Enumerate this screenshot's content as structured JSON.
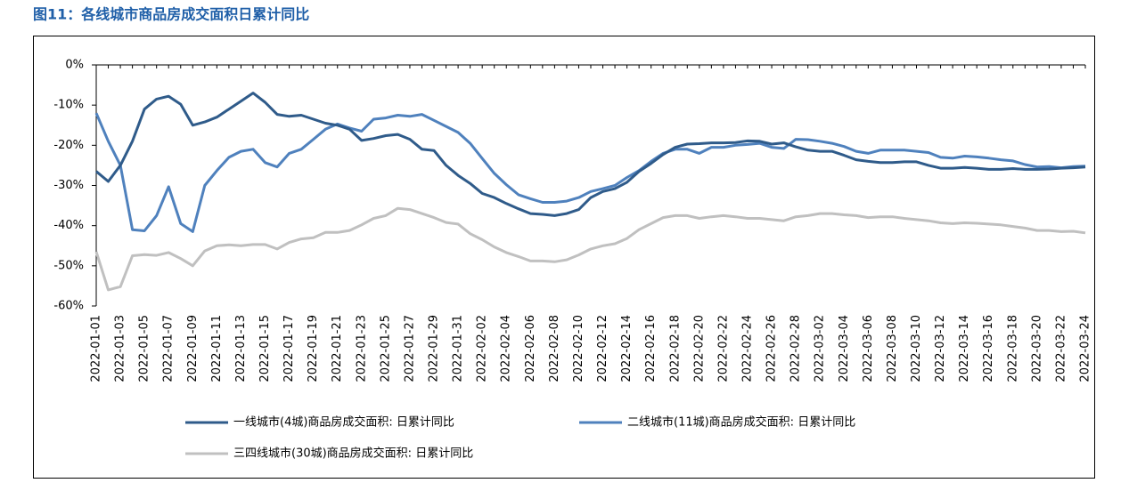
{
  "chart_data": {
    "type": "line",
    "title": "图11：各线城市商品房成交面积日累计同比",
    "categories": [
      "2022-01-01",
      null,
      "2022-01-03",
      null,
      "2022-01-05",
      null,
      "2022-01-07",
      null,
      "2022-01-09",
      null,
      "2022-01-11",
      null,
      "2022-01-13",
      null,
      "2022-01-15",
      null,
      "2022-01-17",
      null,
      "2022-01-19",
      null,
      "2022-01-21",
      null,
      "2022-01-23",
      null,
      "2022-01-25",
      null,
      "2022-01-27",
      null,
      "2022-01-29",
      null,
      "2022-01-31",
      null,
      "2022-02-02",
      null,
      "2022-02-04",
      null,
      "2022-02-06",
      null,
      "2022-02-08",
      null,
      "2022-02-10",
      null,
      "2022-02-12",
      null,
      "2022-02-14",
      null,
      "2022-02-16",
      null,
      "2022-02-18",
      null,
      "2022-02-20",
      null,
      "2022-02-22",
      null,
      "2022-02-24",
      null,
      "2022-02-26",
      null,
      "2022-02-28",
      null,
      "2022-03-02",
      null,
      "2022-03-04",
      null,
      "2022-03-06",
      null,
      "2022-03-08",
      null,
      "2022-03-10",
      null,
      "2022-03-12",
      null,
      "2022-03-14",
      null,
      "2022-03-16",
      null,
      "2022-03-18",
      null,
      "2022-03-20",
      null,
      "2022-03-22",
      null,
      "2022-03-24"
    ],
    "series": [
      {
        "name": "一线城市(4城)商品房成交面积: 日累计同比",
        "color": "#2f5b8a",
        "values": [
          -26.5,
          -29,
          -25,
          -19,
          -11,
          -8.5,
          -7.8,
          -9.8,
          -15,
          -14.2,
          -13,
          -11,
          -9,
          -7,
          -9.3,
          -12.3,
          -12.8,
          -12.5,
          -13.5,
          -14.5,
          -15,
          -16,
          -18.8,
          -18.3,
          -17.6,
          -17.3,
          -18.5,
          -21,
          -21.3,
          -25,
          -27.5,
          -29.5,
          -32,
          -33,
          -34.5,
          -35.8,
          -37,
          -37.2,
          -37.5,
          -37,
          -36,
          -33,
          -31.5,
          -30.8,
          -29.2,
          -26.5,
          -24.5,
          -22.3,
          -20.5,
          -19.7,
          -19.6,
          -19.4,
          -19.4,
          -19.3,
          -18.9,
          -19,
          -19.7,
          -19.4,
          -20.4,
          -21.2,
          -21.5,
          -21.5,
          -22.5,
          -23.6,
          -24,
          -24.3,
          -24.3,
          -24.1,
          -24.1,
          -25,
          -25.7,
          -25.7,
          -25.5,
          -25.7,
          -26,
          -26,
          -25.8,
          -26,
          -26,
          -25.9,
          -25.7,
          -25.6,
          -25.4
        ]
      },
      {
        "name": "二线城市(11城)商品房成交面积: 日累计同比",
        "color": "#4f81bd",
        "values": [
          -12,
          -19,
          -25,
          -41,
          -41.3,
          -37.5,
          -30.3,
          -39.5,
          -41.5,
          -30,
          -26.3,
          -23,
          -21.5,
          -21,
          -24.3,
          -25.4,
          -22,
          -21,
          -18.5,
          -16,
          -14.7,
          -15.7,
          -16.5,
          -13.5,
          -13.2,
          -12.5,
          -12.8,
          -12.3,
          -13.8,
          -15.3,
          -16.8,
          -19.5,
          -23.3,
          -27,
          -29.8,
          -32.3,
          -33.3,
          -34.2,
          -34.2,
          -33.9,
          -33,
          -31.5,
          -30.8,
          -30,
          -28,
          -26.3,
          -24,
          -22,
          -21,
          -21,
          -22,
          -20.5,
          -20.5,
          -20,
          -19.8,
          -19.5,
          -20.5,
          -20.8,
          -18.5,
          -18.6,
          -19,
          -19.5,
          -20.3,
          -21.5,
          -22,
          -21.2,
          -21.2,
          -21.2,
          -21.5,
          -21.8,
          -23,
          -23.2,
          -22.7,
          -22.9,
          -23.2,
          -23.6,
          -23.9,
          -24.8,
          -25.4,
          -25.3,
          -25.6,
          -25.3,
          -25.2
        ]
      },
      {
        "name": "三四线城市(30城)商品房成交面积: 日累计同比",
        "color": "#c0c0c0",
        "values": [
          -46.5,
          -56,
          -55.2,
          -47.5,
          -47.2,
          -47.4,
          -46.7,
          -48.2,
          -50,
          -46.3,
          -45,
          -44.8,
          -45,
          -44.7,
          -44.7,
          -45.8,
          -44.2,
          -43.3,
          -43,
          -41.7,
          -41.7,
          -41.2,
          -39.8,
          -38.2,
          -37.5,
          -35.7,
          -36,
          -37,
          -38,
          -39.2,
          -39.6,
          -42,
          -43.5,
          -45.3,
          -46.7,
          -47.7,
          -48.8,
          -48.8,
          -49,
          -48.5,
          -47.3,
          -45.8,
          -45,
          -44.5,
          -43.2,
          -41,
          -39.5,
          -38,
          -37.5,
          -37.5,
          -38.2,
          -37.8,
          -37.5,
          -37.8,
          -38.2,
          -38.2,
          -38.5,
          -38.8,
          -37.8,
          -37.5,
          -37,
          -37,
          -37.3,
          -37.5,
          -38,
          -37.8,
          -37.8,
          -38.2,
          -38.5,
          -38.8,
          -39.3,
          -39.5,
          -39.3,
          -39.4,
          -39.6,
          -39.8,
          -40.2,
          -40.6,
          -41.2,
          -41.2,
          -41.5,
          -41.4,
          -41.8
        ]
      }
    ],
    "ylim": [
      -60,
      0
    ],
    "yticks": [
      {
        "value": 0,
        "label": "0%"
      },
      {
        "value": -10,
        "label": "-10%"
      },
      {
        "value": -20,
        "label": "-20%"
      },
      {
        "value": -30,
        "label": "-30%"
      },
      {
        "value": -40,
        "label": "-40%"
      },
      {
        "value": -50,
        "label": "-50%"
      },
      {
        "value": -60,
        "label": "-60%"
      }
    ],
    "grid": false
  }
}
